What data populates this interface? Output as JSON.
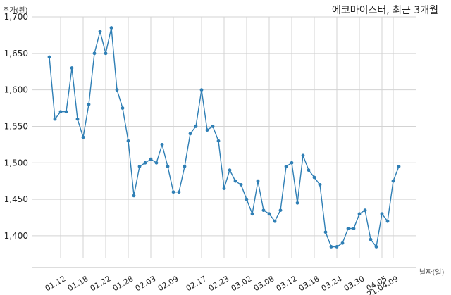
{
  "chart_data": {
    "type": "line",
    "title": "에코마이스터, 최근 3개월",
    "ylabel": "주가(원)",
    "xlabel": "날짜(일)",
    "ylim": [
      1370,
      1700
    ],
    "y_ticks": [
      1400,
      1450,
      1500,
      1550,
      1600,
      1650,
      1700
    ],
    "y_tick_labels": [
      "1,400",
      "1,450",
      "1,500",
      "1,550",
      "1,600",
      "1,650",
      "1,700"
    ],
    "x_tick_labels": [
      "01.12",
      "01.18",
      "01.22",
      "01.28",
      "02.03",
      "02.09",
      "02.17",
      "02.23",
      "03.02",
      "03.08",
      "03.12",
      "03.18",
      "03.24",
      "03.30",
      "04.05",
      "21.04.09"
    ],
    "x_tick_indices": [
      2,
      6,
      10,
      14,
      18,
      22,
      27,
      31,
      35,
      39,
      43,
      47,
      51,
      55,
      59,
      61
    ],
    "color": "#2f7fb5",
    "grid": true,
    "series": [
      {
        "values": [
          1645,
          1560,
          1570,
          1570,
          1630,
          1560,
          1535,
          1580,
          1650,
          1680,
          1650,
          1685,
          1600,
          1575,
          1530,
          1455,
          1495,
          1500,
          1505,
          1500,
          1525,
          1495,
          1460,
          1460,
          1495,
          1540,
          1550,
          1600,
          1545,
          1550,
          1530,
          1465,
          1490,
          1475,
          1470,
          1450,
          1430,
          1475,
          1435,
          1430,
          1420,
          1435,
          1495,
          1500,
          1445,
          1510,
          1490,
          1480,
          1470,
          1405,
          1385,
          1385,
          1390,
          1410,
          1410,
          1430,
          1435,
          1395,
          1385,
          1430,
          1420,
          1475,
          1495
        ]
      }
    ]
  }
}
